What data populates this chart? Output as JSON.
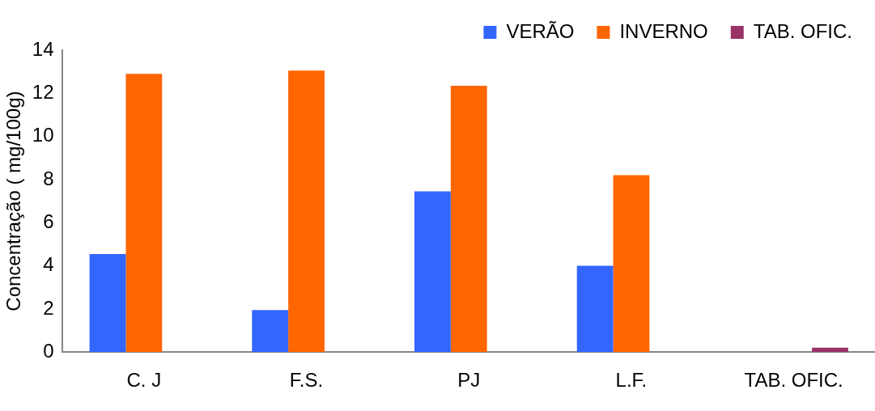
{
  "chart_data": {
    "type": "bar",
    "ylabel": "Concentração ( mg/100g)",
    "categories": [
      "C. J",
      "F.S.",
      "PJ",
      "L.F.",
      "TAB. OFIC."
    ],
    "series": [
      {
        "name": "VERÃO",
        "color": "#3366ff",
        "values": [
          4.55,
          1.95,
          7.45,
          4.0,
          null
        ]
      },
      {
        "name": "INVERNO",
        "color": "#ff6600",
        "values": [
          12.9,
          13.05,
          12.35,
          8.2,
          null
        ]
      },
      {
        "name": "TAB. OFIC.",
        "color": "#993366",
        "values": [
          null,
          null,
          null,
          null,
          0.2
        ]
      }
    ],
    "ylim": [
      0,
      14
    ],
    "yticks": [
      0,
      2,
      4,
      6,
      8,
      10,
      12,
      14
    ],
    "grid": false,
    "legend": "top right"
  }
}
